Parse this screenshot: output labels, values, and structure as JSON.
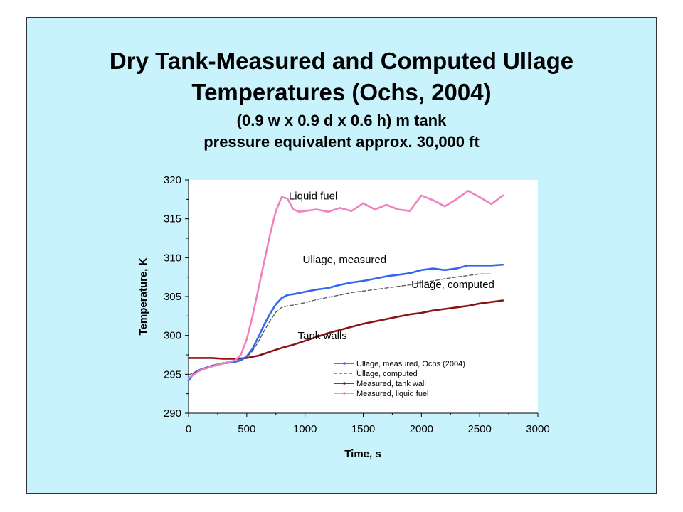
{
  "slide": {
    "title_line1": "Dry Tank-Measured and Computed Ullage",
    "title_line2": "Temperatures (Ochs, 2004)",
    "subtitle_line1": "(0.9 w x 0.9 d x 0.6 h) m tank",
    "subtitle_line2": "pressure equivalent approx.  30,000 ft",
    "background_color": "#c8f3fc"
  },
  "chart_data": {
    "type": "line",
    "xlabel": "Time, s",
    "ylabel": "Temperature, K",
    "xlim": [
      0,
      3000
    ],
    "ylim": [
      290,
      320
    ],
    "xticks": [
      "0",
      "500",
      "1000",
      "1500",
      "2000",
      "2500",
      "3000"
    ],
    "yticks": [
      "290",
      "295",
      "300",
      "305",
      "310",
      "315",
      "320"
    ],
    "grid": false,
    "legend_position": "bottom-right",
    "series": [
      {
        "name": "Ullage, measured, Ochs (2004)",
        "color": "#3366ee",
        "style": "solid",
        "x": [
          0,
          50,
          100,
          200,
          300,
          400,
          450,
          500,
          550,
          600,
          650,
          700,
          750,
          800,
          850,
          900,
          1000,
          1100,
          1200,
          1300,
          1400,
          1500,
          1600,
          1700,
          1800,
          1900,
          2000,
          2100,
          2200,
          2300,
          2400,
          2500,
          2600,
          2700
        ],
        "y": [
          294.2,
          295.2,
          295.6,
          296.1,
          296.4,
          296.6,
          296.8,
          297.3,
          298.3,
          299.8,
          301.4,
          302.8,
          304.0,
          304.8,
          305.2,
          305.3,
          305.6,
          305.9,
          306.1,
          306.5,
          306.8,
          307.0,
          307.3,
          307.6,
          307.8,
          308.0,
          308.4,
          308.6,
          308.4,
          308.6,
          309.0,
          309.0,
          309.0,
          309.1
        ]
      },
      {
        "name": "Ullage, computed",
        "color": "#555555",
        "style": "dashed",
        "x": [
          0,
          100,
          200,
          300,
          400,
          500,
          550,
          600,
          650,
          700,
          750,
          800,
          850,
          900,
          1000,
          1100,
          1200,
          1300,
          1400,
          1500,
          1600,
          1700,
          1800,
          1900,
          2000,
          2100,
          2200,
          2300,
          2400,
          2500,
          2600
        ],
        "y": [
          294.9,
          295.6,
          296.1,
          296.5,
          296.8,
          297.2,
          298.0,
          299.2,
          300.6,
          301.9,
          303.0,
          303.6,
          303.8,
          303.9,
          304.2,
          304.6,
          304.9,
          305.2,
          305.5,
          305.7,
          305.9,
          306.1,
          306.3,
          306.5,
          306.8,
          307.0,
          307.3,
          307.5,
          307.7,
          307.9,
          307.9
        ]
      },
      {
        "name": "Measured, tank wall",
        "color": "#8a1414",
        "style": "solid",
        "x": [
          0,
          100,
          200,
          300,
          400,
          500,
          600,
          700,
          800,
          900,
          1000,
          1100,
          1200,
          1300,
          1400,
          1500,
          1600,
          1700,
          1800,
          1900,
          2000,
          2100,
          2200,
          2300,
          2400,
          2500,
          2600,
          2700
        ],
        "y": [
          297.1,
          297.1,
          297.1,
          297.0,
          297.0,
          297.1,
          297.4,
          297.9,
          298.4,
          298.8,
          299.3,
          299.8,
          300.3,
          300.7,
          301.1,
          301.5,
          301.8,
          302.1,
          302.4,
          302.7,
          302.9,
          303.2,
          303.4,
          303.6,
          303.8,
          304.1,
          304.3,
          304.5
        ]
      },
      {
        "name": "Measured, liquid fuel",
        "color": "#f080c0",
        "style": "solid",
        "x": [
          0,
          50,
          100,
          200,
          300,
          400,
          450,
          500,
          550,
          600,
          650,
          700,
          750,
          800,
          850,
          900,
          950,
          1000,
          1100,
          1200,
          1300,
          1400,
          1500,
          1600,
          1700,
          1800,
          1900,
          2000,
          2100,
          2200,
          2300,
          2400,
          2500,
          2600,
          2700
        ],
        "y": [
          294.5,
          295.0,
          295.5,
          296.0,
          296.4,
          296.8,
          297.5,
          299.5,
          302.5,
          306.0,
          309.5,
          313.0,
          316.0,
          317.8,
          317.6,
          316.2,
          315.9,
          316.0,
          316.2,
          315.9,
          316.4,
          316.0,
          317.0,
          316.2,
          316.8,
          316.2,
          316.0,
          318.0,
          317.4,
          316.6,
          317.5,
          318.6,
          317.8,
          316.9,
          318.0
        ]
      }
    ],
    "annotations": [
      {
        "text": "Liquid fuel",
        "x": 1070,
        "y": 317.5
      },
      {
        "text": "Ullage, measured",
        "x": 1340,
        "y": 309.3
      },
      {
        "text": "Ullage, computed",
        "x": 2270,
        "y": 306.1
      },
      {
        "text": "Tank walls",
        "x": 1150,
        "y": 299.5
      }
    ]
  }
}
